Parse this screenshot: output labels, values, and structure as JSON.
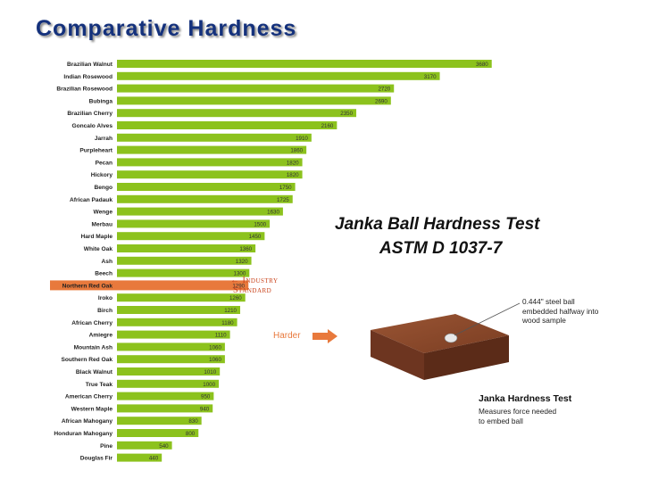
{
  "title": "Comparative Hardness",
  "colors": {
    "bar": "#8cc21d",
    "highlight": "#e8793c",
    "title": "#14317c",
    "accent": "#c9421a"
  },
  "chart_data": {
    "type": "bar",
    "orientation": "horizontal",
    "categories": [
      "Brazilian Walnut",
      "Indian Rosewood",
      "Brazilian Rosewood",
      "Bubinga",
      "Brazilian Cherry",
      "Goncalo Alves",
      "Jarrah",
      "Purpleheart",
      "Pecan",
      "Hickory",
      "Bengo",
      "African Padauk",
      "Wenge",
      "Merbau",
      "Hard Maple",
      "White Oak",
      "Ash",
      "Beech",
      "Northern Red Oak",
      "Iroko",
      "Birch",
      "African Cherry",
      "Amiegre",
      "Mountain Ash",
      "Southern Red Oak",
      "Black Walnut",
      "True Teak",
      "American Cherry",
      "Western Maple",
      "African Mahogany",
      "Honduran Mahogany",
      "Pine",
      "Douglas Fir"
    ],
    "values": [
      3680,
      3170,
      2720,
      2690,
      2350,
      2160,
      1910,
      1860,
      1820,
      1820,
      1750,
      1725,
      1630,
      1500,
      1450,
      1360,
      1320,
      1300,
      1290,
      1260,
      1210,
      1180,
      1110,
      1060,
      1060,
      1010,
      1000,
      950,
      940,
      830,
      800,
      540,
      440
    ],
    "highlight_category": "Northern Red Oak",
    "xlim": [
      0,
      3800
    ],
    "grid": false,
    "legend": "none"
  },
  "annotations": {
    "janka_line1": "Janka Ball Hardness Test",
    "janka_line2": "ASTM D 1037-7",
    "industry_line1": "← Industry",
    "industry_line2": "Standard",
    "harder": "Harder",
    "ball_note": [
      "0.444\" steel ball",
      "embedded halfway into",
      "wood sample"
    ],
    "diagram_title": "Janka Hardness Test",
    "diagram_desc": [
      "Measures force needed",
      "to embed ball"
    ]
  }
}
